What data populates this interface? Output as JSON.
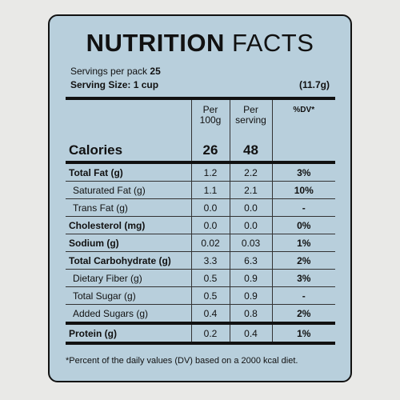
{
  "title": {
    "bold": "NUTRITION",
    "light": "FACTS"
  },
  "servings": {
    "label": "Servings per pack",
    "value": "25"
  },
  "serving_size": {
    "label": "Serving Size: 1 cup",
    "value": "(11.7g)"
  },
  "columns": [
    "Per 100g",
    "Per serving",
    "%DV*"
  ],
  "calories": {
    "label": "Calories",
    "per_100g": "26",
    "per_serving": "48"
  },
  "rows": [
    [
      "Total Fat (g)",
      "1.2",
      "2.2",
      "3%"
    ],
    [
      "Saturated Fat (g)",
      "1.1",
      "2.1",
      "10%"
    ],
    [
      "Trans Fat (g)",
      "0.0",
      "0.0",
      "-"
    ],
    [
      "Cholesterol (mg)",
      "0.0",
      "0.0",
      "0%"
    ],
    [
      "Sodium (g)",
      "0.02",
      "0.03",
      "1%"
    ],
    [
      "Total Carbohydrate (g)",
      "3.3",
      "6.3",
      "2%"
    ],
    [
      "Dietary Fiber (g)",
      "0.5",
      "0.9",
      "3%"
    ],
    [
      "Total Sugar (g)",
      "0.5",
      "0.9",
      "-"
    ],
    [
      "Added Sugars (g)",
      "0.4",
      "0.8",
      "2%"
    ],
    [
      "Protein (g)",
      "0.2",
      "0.4",
      "1%"
    ]
  ],
  "footnote": "*Percent of the daily values (DV) based on a 2000 kcal diet."
}
